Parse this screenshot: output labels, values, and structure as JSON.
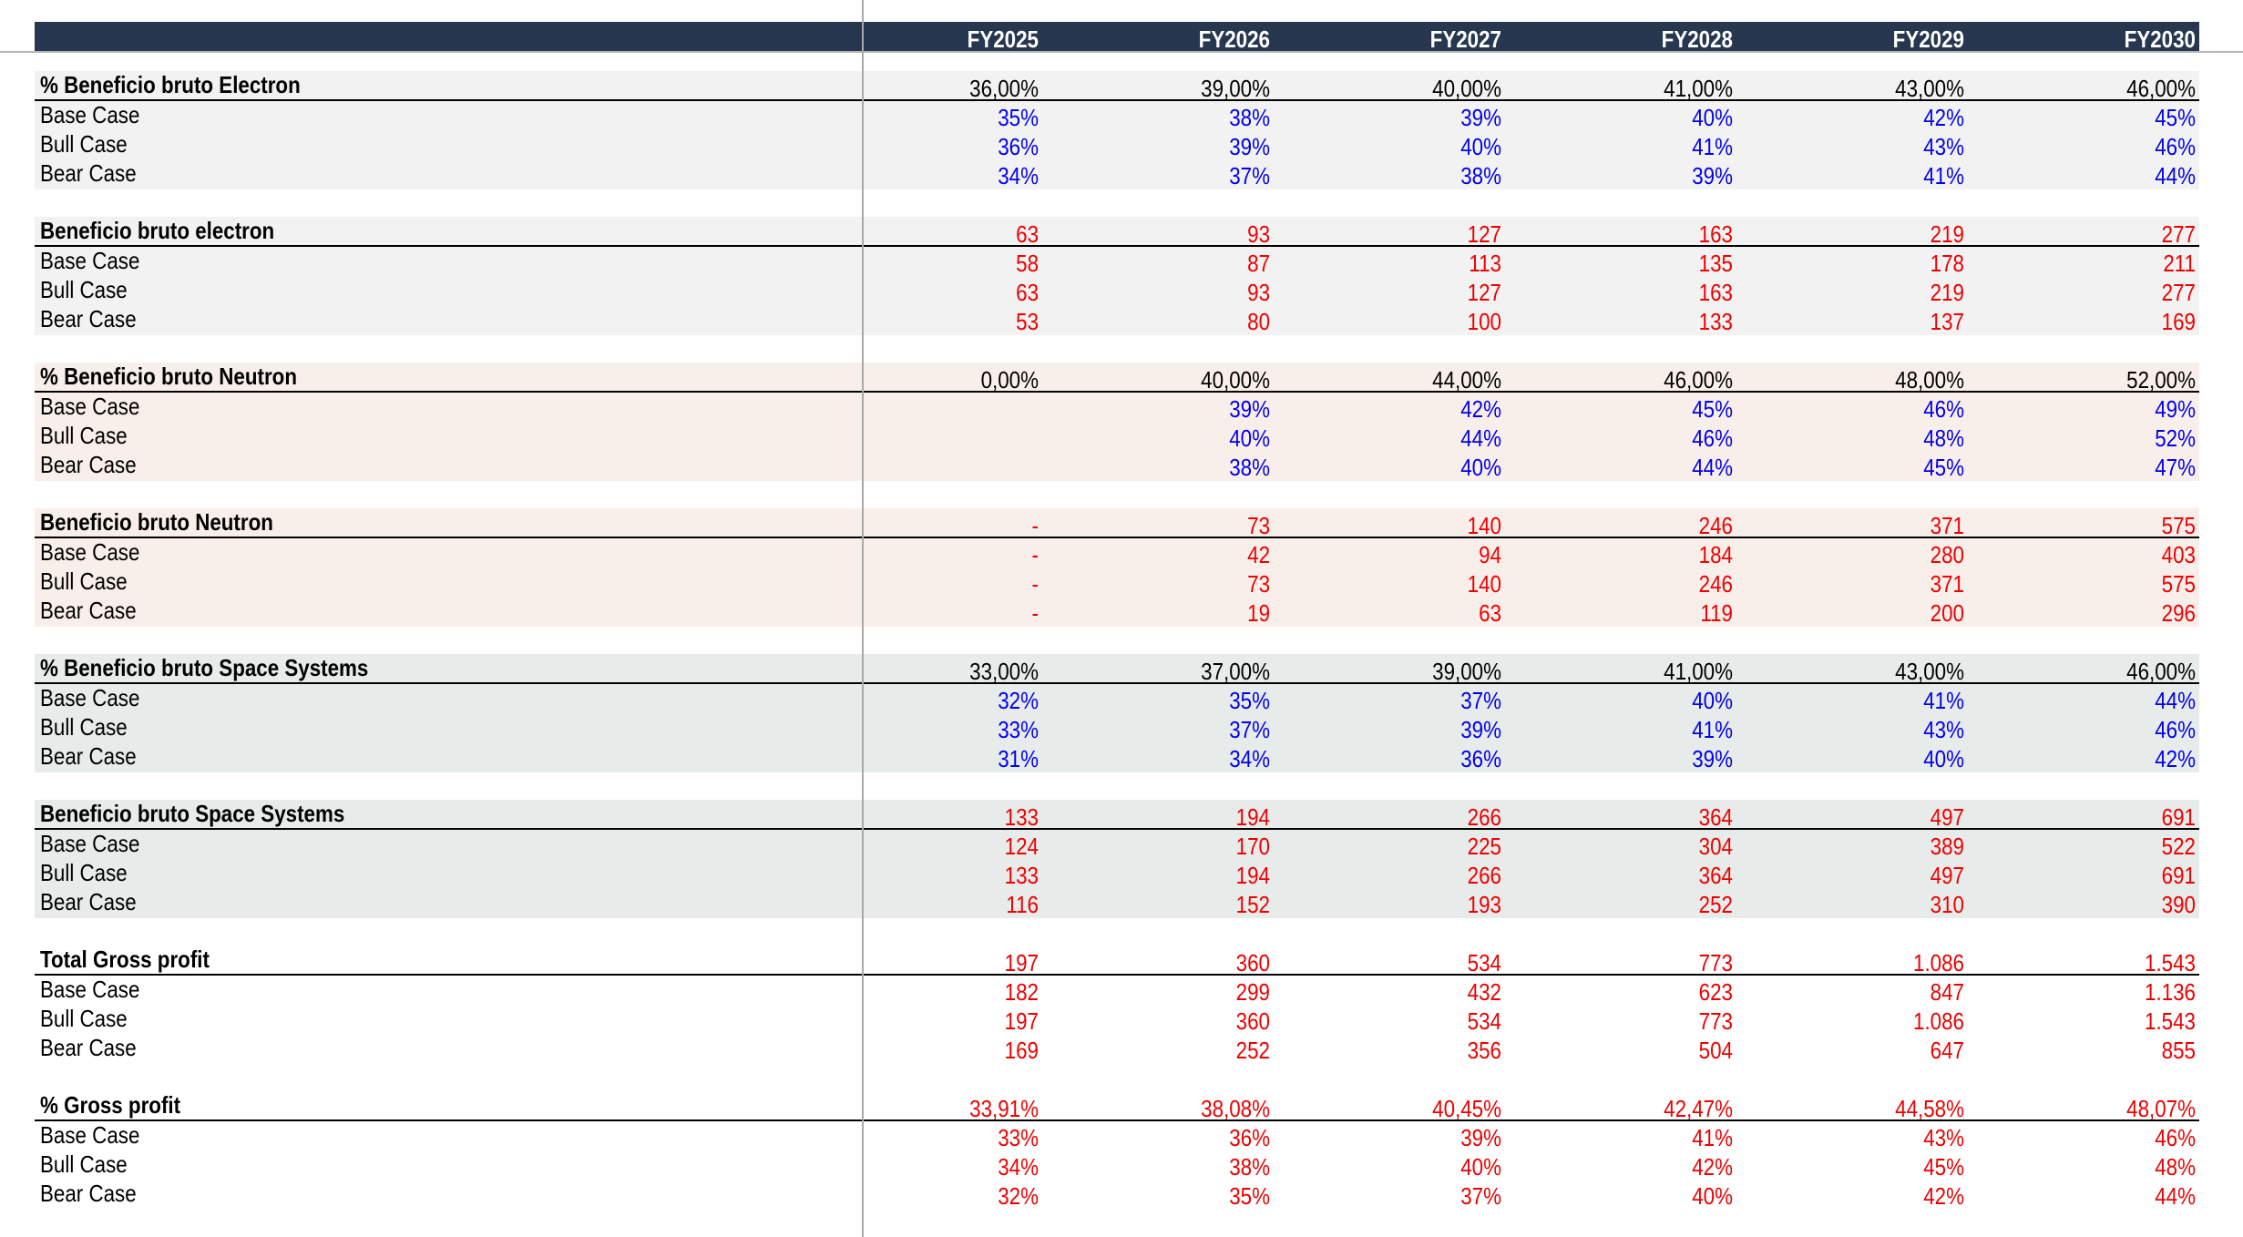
{
  "header": {
    "years": [
      "FY2025",
      "FY2026",
      "FY2027",
      "FY2028",
      "FY2029",
      "FY2030"
    ]
  },
  "colors": {
    "header_bg": "#26374f",
    "input_blue": "#0000ee",
    "output_red": "#ee0000",
    "band_gray": "#f2f2f2",
    "band_peach": "#f9efea",
    "band_green": "#e7ebe9"
  },
  "sections": [
    {
      "title": "% Beneficio bruto Electron",
      "title_color": "black",
      "title_values": [
        "36,00%",
        "39,00%",
        "40,00%",
        "41,00%",
        "43,00%",
        "46,00%"
      ],
      "value_color": "blue",
      "rows": [
        {
          "label": "Base Case",
          "values": [
            "35%",
            "38%",
            "39%",
            "40%",
            "42%",
            "45%"
          ]
        },
        {
          "label": "Bull Case",
          "values": [
            "36%",
            "39%",
            "40%",
            "41%",
            "43%",
            "46%"
          ]
        },
        {
          "label": "Bear Case",
          "values": [
            "34%",
            "37%",
            "38%",
            "39%",
            "41%",
            "44%"
          ]
        }
      ]
    },
    {
      "title": "Beneficio bruto electron",
      "title_color": "red",
      "title_values": [
        "63",
        "93",
        "127",
        "163",
        "219",
        "277"
      ],
      "value_color": "red",
      "rows": [
        {
          "label": "Base Case",
          "values": [
            "58",
            "87",
            "113",
            "135",
            "178",
            "211"
          ]
        },
        {
          "label": "Bull Case",
          "values": [
            "63",
            "93",
            "127",
            "163",
            "219",
            "277"
          ]
        },
        {
          "label": "Bear Case",
          "values": [
            "53",
            "80",
            "100",
            "133",
            "137",
            "169"
          ]
        }
      ]
    },
    {
      "title": "% Beneficio bruto Neutron",
      "title_color": "black",
      "title_values": [
        "0,00%",
        "40,00%",
        "44,00%",
        "46,00%",
        "48,00%",
        "52,00%"
      ],
      "value_color": "blue",
      "rows": [
        {
          "label": "Base Case",
          "values": [
            "",
            "39%",
            "42%",
            "45%",
            "46%",
            "49%"
          ]
        },
        {
          "label": "Bull Case",
          "values": [
            "",
            "40%",
            "44%",
            "46%",
            "48%",
            "52%"
          ]
        },
        {
          "label": "Bear Case",
          "values": [
            "",
            "38%",
            "40%",
            "44%",
            "45%",
            "47%"
          ]
        }
      ]
    },
    {
      "title": "Beneficio bruto Neutron",
      "title_color": "red",
      "title_values": [
        "-",
        "73",
        "140",
        "246",
        "371",
        "575"
      ],
      "value_color": "red",
      "rows": [
        {
          "label": "Base Case",
          "values": [
            "-",
            "42",
            "94",
            "184",
            "280",
            "403"
          ]
        },
        {
          "label": "Bull Case",
          "values": [
            "-",
            "73",
            "140",
            "246",
            "371",
            "575"
          ]
        },
        {
          "label": "Bear Case",
          "values": [
            "-",
            "19",
            "63",
            "119",
            "200",
            "296"
          ]
        }
      ]
    },
    {
      "title": "% Beneficio bruto Space Systems",
      "title_color": "black",
      "title_values": [
        "33,00%",
        "37,00%",
        "39,00%",
        "41,00%",
        "43,00%",
        "46,00%"
      ],
      "value_color": "blue",
      "rows": [
        {
          "label": "Base Case",
          "values": [
            "32%",
            "35%",
            "37%",
            "40%",
            "41%",
            "44%"
          ]
        },
        {
          "label": "Bull Case",
          "values": [
            "33%",
            "37%",
            "39%",
            "41%",
            "43%",
            "46%"
          ]
        },
        {
          "label": "Bear Case",
          "values": [
            "31%",
            "34%",
            "36%",
            "39%",
            "40%",
            "42%"
          ]
        }
      ]
    },
    {
      "title": "Beneficio bruto Space Systems",
      "title_color": "red",
      "title_values": [
        "133",
        "194",
        "266",
        "364",
        "497",
        "691"
      ],
      "value_color": "red",
      "rows": [
        {
          "label": "Base Case",
          "values": [
            "124",
            "170",
            "225",
            "304",
            "389",
            "522"
          ]
        },
        {
          "label": "Bull Case",
          "values": [
            "133",
            "194",
            "266",
            "364",
            "497",
            "691"
          ]
        },
        {
          "label": "Bear Case",
          "values": [
            "116",
            "152",
            "193",
            "252",
            "310",
            "390"
          ]
        }
      ]
    },
    {
      "title": "Total Gross profit",
      "title_color": "red",
      "title_values": [
        "197",
        "360",
        "534",
        "773",
        "1.086",
        "1.543"
      ],
      "value_color": "red",
      "rows": [
        {
          "label": "Base Case",
          "values": [
            "182",
            "299",
            "432",
            "623",
            "847",
            "1.136"
          ]
        },
        {
          "label": "Bull Case",
          "values": [
            "197",
            "360",
            "534",
            "773",
            "1.086",
            "1.543"
          ]
        },
        {
          "label": "Bear Case",
          "values": [
            "169",
            "252",
            "356",
            "504",
            "647",
            "855"
          ]
        }
      ]
    },
    {
      "title": "% Gross profit",
      "title_color": "red",
      "title_values": [
        "33,91%",
        "38,08%",
        "40,45%",
        "42,47%",
        "44,58%",
        "48,07%"
      ],
      "value_color": "red",
      "rows": [
        {
          "label": "Base Case",
          "values": [
            "33%",
            "36%",
            "39%",
            "41%",
            "43%",
            "46%"
          ]
        },
        {
          "label": "Bull Case",
          "values": [
            "34%",
            "38%",
            "40%",
            "42%",
            "45%",
            "48%"
          ]
        },
        {
          "label": "Bear Case",
          "values": [
            "32%",
            "35%",
            "37%",
            "40%",
            "42%",
            "44%"
          ]
        }
      ]
    }
  ]
}
